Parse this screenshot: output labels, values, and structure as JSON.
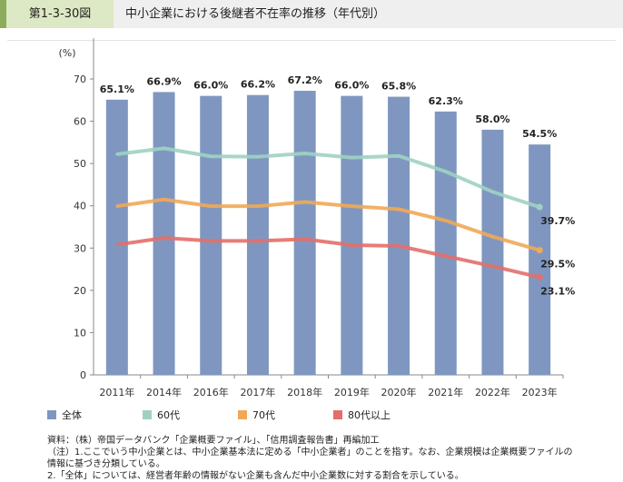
{
  "header": {
    "figure_number": "第1-3-30図",
    "title": "中小企業における後継者不在率の推移（年代別）"
  },
  "chart_data": {
    "type": "bar+line",
    "ylabel": "(%)",
    "ylim": [
      0,
      70
    ],
    "yticks": [
      0,
      10,
      20,
      30,
      40,
      50,
      60,
      70
    ],
    "grid": false,
    "legend_position": "bottom",
    "categories": [
      "2011年",
      "2014年",
      "2016年",
      "2017年",
      "2018年",
      "2019年",
      "2020年",
      "2021年",
      "2022年",
      "2023年"
    ],
    "series": [
      {
        "name": "全体",
        "type": "bar",
        "color": "#7f97c0",
        "values": [
          65.1,
          66.9,
          66.0,
          66.2,
          67.2,
          66.0,
          65.8,
          62.3,
          58.0,
          54.5
        ],
        "labels": [
          "65.1%",
          "66.9%",
          "66.0%",
          "66.2%",
          "67.2%",
          "66.0%",
          "65.8%",
          "62.3%",
          "58.0%",
          "54.5%"
        ]
      },
      {
        "name": "60代",
        "type": "line",
        "color": "#9fd1c3",
        "values": [
          52.2,
          53.6,
          51.7,
          51.6,
          52.4,
          51.4,
          51.8,
          48.1,
          43.3,
          39.7
        ],
        "end_label": "39.7%"
      },
      {
        "name": "70代",
        "type": "line",
        "color": "#f1a857",
        "values": [
          39.9,
          41.5,
          39.9,
          39.9,
          40.9,
          39.9,
          39.2,
          36.5,
          32.7,
          29.5
        ],
        "end_label": "29.5%"
      },
      {
        "name": "80代以上",
        "type": "line",
        "color": "#e36f6a",
        "values": [
          30.8,
          32.4,
          31.7,
          31.7,
          32.1,
          30.7,
          30.5,
          28.1,
          25.7,
          23.1
        ],
        "end_label": "23.1%"
      }
    ]
  },
  "notes": {
    "source": "資料：（株）帝国データバンク「企業概要ファイル」、「信用調査報告書」再編加工",
    "note1": "（注）1.ここでいう中小企業とは、中小企業基本法に定める「中小企業者」のことを指す。なお、企業規模は企業概要ファイルの",
    "note1b": "情報に基づき分類している。",
    "note2": "2.「全体」については、経営者年齢の情報がない企業も含んだ中小企業数に対する割合を示している。"
  }
}
